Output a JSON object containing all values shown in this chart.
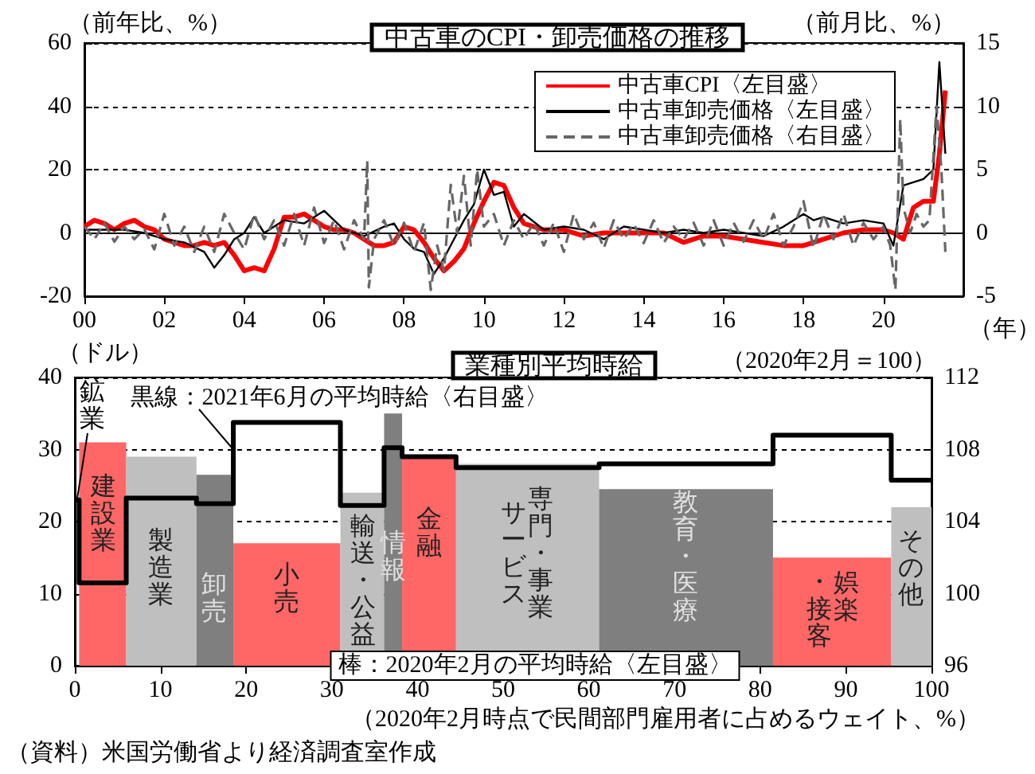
{
  "chart_data": [
    {
      "type": "line",
      "title": "中古車のCPI・卸売価格の推移",
      "xlabel": "（年）",
      "ylabel": "（前年比、%）",
      "y2label": "（前月比、%）",
      "xlim": [
        2000,
        2022
      ],
      "xticks": [
        {
          "value": 2000,
          "label": "00"
        },
        {
          "value": 2002,
          "label": "02"
        },
        {
          "value": 2004,
          "label": "04"
        },
        {
          "value": 2006,
          "label": "06"
        },
        {
          "value": 2008,
          "label": "08"
        },
        {
          "value": 2010,
          "label": "10"
        },
        {
          "value": 2012,
          "label": "12"
        },
        {
          "value": 2014,
          "label": "14"
        },
        {
          "value": 2016,
          "label": "16"
        },
        {
          "value": 2018,
          "label": "18"
        },
        {
          "value": 2020,
          "label": "20"
        }
      ],
      "ylim": [
        -20,
        60
      ],
      "yticks": [
        -20,
        0,
        20,
        40,
        60
      ],
      "y2lim": [
        -5,
        15
      ],
      "y2ticks": [
        -5,
        0,
        5,
        10,
        15
      ],
      "grid": "y",
      "legend": "top right",
      "marker": "none",
      "ref_lines": [
        {
          "axis": "y",
          "value": 0,
          "color": "#000000"
        }
      ],
      "series": [
        {
          "name": "中古車CPI〈左目盛〉",
          "color": "#ff0000",
          "line_style": "solid",
          "x": [
            2000,
            2000.25,
            2000.5,
            2000.75,
            2001,
            2001.25,
            2001.5,
            2001.75,
            2002,
            2002.25,
            2002.5,
            2002.75,
            2003,
            2003.25,
            2003.5,
            2003.75,
            2004,
            2004.25,
            2004.5,
            2004.75,
            2005,
            2005.25,
            2005.5,
            2005.75,
            2006,
            2006.25,
            2006.5,
            2006.75,
            2007,
            2007.25,
            2007.5,
            2007.75,
            2008,
            2008.25,
            2008.5,
            2008.75,
            2009,
            2009.25,
            2009.5,
            2009.75,
            2010,
            2010.25,
            2010.5,
            2010.75,
            2011,
            2011.5,
            2012,
            2012.5,
            2013,
            2013.5,
            2014,
            2014.5,
            2015,
            2015.5,
            2016,
            2016.5,
            2017,
            2017.5,
            2018,
            2018.5,
            2019,
            2019.5,
            2020,
            2020.25,
            2020.5,
            2020.75,
            2021,
            2021.25,
            2021.4,
            2021.55
          ],
          "values": [
            2,
            4,
            3,
            1,
            3,
            4,
            2,
            1,
            -2,
            -3,
            -4,
            -4,
            -3,
            -4,
            -3,
            -7,
            -12,
            -11,
            -12,
            -5,
            5,
            5,
            6,
            4,
            2,
            1,
            1,
            0,
            -2,
            -4,
            -4,
            -3,
            2,
            1,
            -3,
            -8,
            -12,
            -9,
            -5,
            3,
            10,
            16,
            15,
            8,
            3,
            1,
            1,
            -1,
            0,
            0,
            0,
            0,
            -3,
            -1,
            -1,
            -2,
            -3,
            -4,
            -4,
            -2,
            0,
            1,
            1,
            0,
            -2,
            8,
            10,
            10,
            25,
            45
          ]
        },
        {
          "name": "中古車卸売価格〈左目盛〉",
          "color": "#000000",
          "line_style": "solid",
          "x": [
            2000,
            2000.5,
            2001,
            2001.5,
            2002,
            2002.5,
            2003,
            2003.25,
            2003.5,
            2003.75,
            2004,
            2004.25,
            2004.5,
            2004.75,
            2005,
            2005.5,
            2006,
            2006.25,
            2006.5,
            2007,
            2007.5,
            2007.75,
            2008,
            2008.25,
            2008.5,
            2008.75,
            2009,
            2009.25,
            2009.5,
            2009.75,
            2010,
            2010.25,
            2010.5,
            2010.75,
            2011,
            2011.5,
            2012,
            2012.5,
            2013,
            2013.5,
            2014,
            2014.5,
            2015,
            2015.5,
            2016,
            2016.5,
            2017,
            2017.5,
            2018,
            2018.25,
            2018.5,
            2019,
            2019.5,
            2020,
            2020.25,
            2020.5,
            2020.75,
            2021,
            2021.25,
            2021.4,
            2021.55
          ],
          "values": [
            1,
            1,
            1,
            0,
            -2,
            -3,
            -6,
            -11,
            -7,
            -2,
            0,
            5,
            0,
            2,
            4,
            3,
            7,
            4,
            1,
            -1,
            2,
            3,
            -2,
            -5,
            -6,
            -13,
            -8,
            -2,
            4,
            9,
            20,
            12,
            13,
            2,
            6,
            1,
            2,
            1,
            -2,
            2,
            1,
            0,
            1,
            0,
            1,
            0,
            -1,
            2,
            6,
            4,
            5,
            3,
            4,
            3,
            -4,
            15,
            16,
            17,
            20,
            54,
            25
          ]
        },
        {
          "name": "中古車卸売価格〈右目盛〉",
          "color": "#666666",
          "line_style": "dashed",
          "axis": "y2",
          "x": [
            2000,
            2000.25,
            2000.5,
            2000.75,
            2001,
            2001.25,
            2001.5,
            2001.75,
            2002,
            2002.25,
            2002.5,
            2002.75,
            2003,
            2003.25,
            2003.5,
            2003.75,
            2004,
            2004.25,
            2004.5,
            2004.75,
            2005,
            2005.25,
            2005.5,
            2005.75,
            2006,
            2006.25,
            2006.5,
            2006.75,
            2007,
            2007.08,
            2007.12,
            2007.25,
            2007.5,
            2007.75,
            2008,
            2008.25,
            2008.5,
            2008.67,
            2008.83,
            2009,
            2009.17,
            2009.33,
            2009.5,
            2009.67,
            2009.83,
            2010,
            2010.25,
            2010.5,
            2010.75,
            2011,
            2011.25,
            2011.5,
            2011.75,
            2012,
            2012.25,
            2012.5,
            2012.75,
            2013,
            2013.25,
            2013.5,
            2013.75,
            2014,
            2014.25,
            2014.5,
            2014.75,
            2015,
            2015.25,
            2015.5,
            2015.75,
            2016,
            2016.25,
            2016.5,
            2016.75,
            2017,
            2017.25,
            2017.5,
            2017.75,
            2018,
            2018.25,
            2018.5,
            2018.75,
            2019,
            2019.25,
            2019.5,
            2019.75,
            2020,
            2020.17,
            2020.3,
            2020.42,
            2020.5,
            2020.67,
            2020.83,
            2021,
            2021.15,
            2021.33,
            2021.45,
            2021.55
          ],
          "values": [
            0.5,
            -0.5,
            0.8,
            -0.7,
            0.5,
            -0.5,
            0.3,
            -1.3,
            1.5,
            -1,
            0.5,
            -1.5,
            0.5,
            -1.5,
            1.5,
            0,
            -1.3,
            1.5,
            -0.5,
            1,
            -1,
            1.5,
            -1,
            2,
            -0.8,
            1,
            -1.3,
            1,
            -0.5,
            5.7,
            -4.3,
            -0.5,
            1,
            -1,
            0.8,
            -1.5,
            0.8,
            -4.5,
            -1,
            -3,
            3.8,
            0,
            4.5,
            -1,
            5,
            0.5,
            1.5,
            -1,
            1,
            -0.5,
            0.8,
            -1,
            0.8,
            -1.5,
            1.5,
            -0.5,
            0.8,
            -1.2,
            1,
            -0.5,
            0.7,
            -0.8,
            1,
            -0.8,
            0.5,
            -0.5,
            0.8,
            -1,
            1,
            -1,
            0.8,
            -0.7,
            1,
            -0.5,
            1.5,
            -1,
            0.5,
            2.5,
            -1.2,
            1.5,
            -0.5,
            1.5,
            -1,
            0.8,
            -0.5,
            0.5,
            -1,
            -4.5,
            9,
            2,
            0,
            1.5,
            0.5,
            1,
            10,
            5,
            -1.5
          ]
        }
      ]
    },
    {
      "type": "histogram",
      "title": "業種別平均時給",
      "xlabel": "（2020年2月時点で民間部門雇用者に占めるウェイト、%）",
      "ylabel": "（ドル）",
      "y2label": "（2020年2月＝100）",
      "xlim": [
        0,
        100
      ],
      "xticks": [
        0,
        10,
        20,
        30,
        40,
        50,
        60,
        70,
        80,
        90,
        100
      ],
      "ylim": [
        0,
        40
      ],
      "yticks": [
        0,
        10,
        20,
        30,
        40
      ],
      "y2lim": [
        96,
        112
      ],
      "y2ticks": [
        96,
        100,
        104,
        108,
        112
      ],
      "grid": "y",
      "legend": false,
      "marker": "none",
      "series": [
        {
          "bins": [
            0.5,
            6,
            14.2,
            18.5,
            31,
            36.1,
            38.2,
            44.5,
            61.2,
            81.5,
            95.3,
            100
          ],
          "values": [
            31,
            29,
            26.5,
            17,
            24,
            35,
            29,
            28,
            24.5,
            15,
            22
          ],
          "colors": [
            "#ff6666",
            "#bfbfbf",
            "#7f7f7f",
            "#ff6666",
            "#bfbfbf",
            "#7f7f7f",
            "#ff6666",
            "#bfbfbf",
            "#7f7f7f",
            "#ff6666",
            "#bfbfbf"
          ]
        },
        {
          "type": "step",
          "axis": "y2",
          "color": "#000000",
          "line_style": "solid",
          "x": [
            0,
            0.5,
            6,
            14.2,
            18.5,
            31,
            36.1,
            38.2,
            44.5,
            61.2,
            81.5,
            95.3,
            100
          ],
          "values": [
            105.2,
            100.6,
            105.3,
            105,
            109.5,
            104.9,
            108.1,
            107.6,
            107,
            107.2,
            108.8,
            106.3,
            106.3
          ]
        }
      ],
      "annotations": [
        {
          "text": "黒線：2021年6月の平均時給〈右目盛〉",
          "x": 18.5,
          "y": 30
        },
        "棒：2020年2月の平均時給〈左目盛〉",
        "（資料）米国労働省より経済調査室作成",
        {
          "text": "鉱業",
          "x": 0.25,
          "y": 23
        },
        "建設業",
        "製造業",
        "卸売",
        "小売",
        "輸送・公益",
        "情報",
        "金融",
        "専門・事業",
        "サービス",
        "教育・医療",
        "娯楽",
        "・接客",
        "その他"
      ]
    }
  ]
}
